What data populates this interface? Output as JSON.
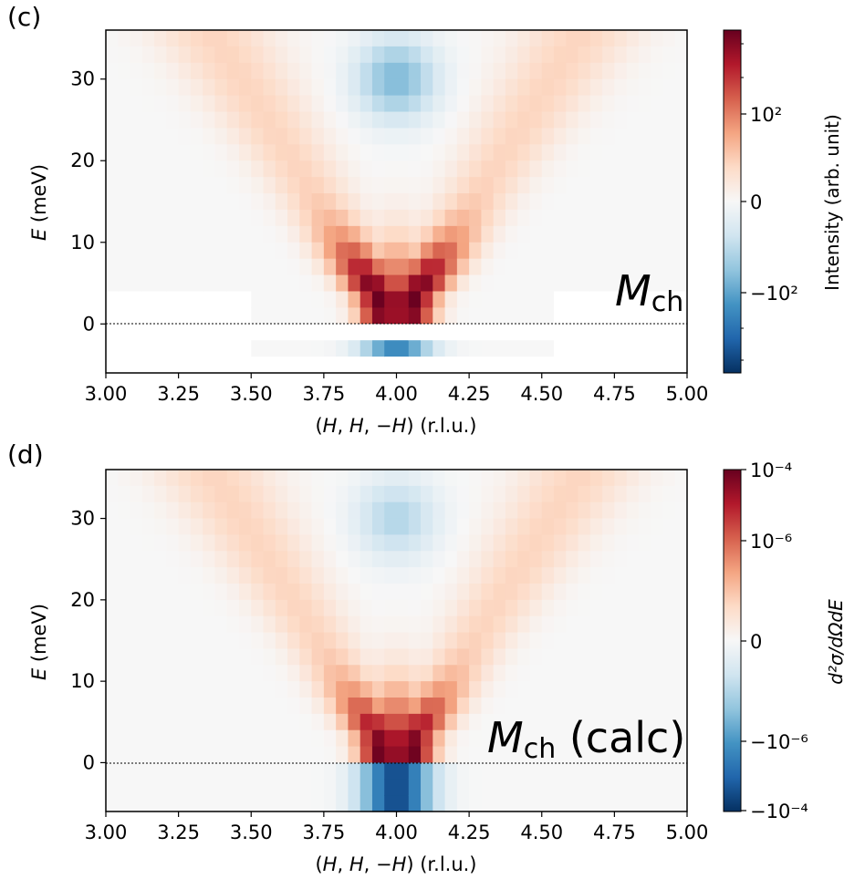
{
  "panels": [
    {
      "label": "(c)",
      "annotation": {
        "symbol": "M",
        "subscript": "ch",
        "suffix": ""
      },
      "xlabel_prefix": "(",
      "xlabel_vars": [
        "H",
        ", ",
        "H",
        ", −",
        "H"
      ],
      "xlabel_suffix": ") (r.l.u.)",
      "ylabel_var": "E",
      "ylabel_unit": " (meV)",
      "colorbar_label": "Intensity (arb. unit)",
      "colorbar_ticks": [
        "10²",
        "0",
        "−10²"
      ]
    },
    {
      "label": "(d)",
      "annotation": {
        "symbol": "M",
        "subscript": "ch",
        "suffix": " (calc)"
      },
      "xlabel_prefix": "(",
      "xlabel_vars": [
        "H",
        ", ",
        "H",
        ", −",
        "H"
      ],
      "xlabel_suffix": ") (r.l.u.)",
      "ylabel_var": "E",
      "ylabel_unit": " (meV)",
      "colorbar_label": "d²σ/dΩdE",
      "colorbar_ticks": [
        "10⁻⁴",
        "10⁻⁶",
        "0",
        "−10⁻⁶",
        "−10⁻⁴"
      ]
    }
  ],
  "chart_data": [
    {
      "type": "heatmap",
      "title": "(c)",
      "xlabel": "(H, H, −H) (r.l.u.)",
      "ylabel": "E (meV)",
      "xlim": [
        3.0,
        5.0
      ],
      "ylim": [
        -6,
        36
      ],
      "xticks": [
        "3.00",
        "3.25",
        "3.50",
        "3.75",
        "4.00",
        "4.25",
        "4.50",
        "4.75",
        "5.00"
      ],
      "yticks": [
        "0",
        "10",
        "20",
        "30"
      ],
      "reference_line_y": 0,
      "colorbar": {
        "label": "Intensity (arb. unit)",
        "scale": "symlog",
        "ticks": [
          "10²",
          "0",
          "−10²"
        ],
        "cmap": "RdBu_r"
      },
      "no_data_band_E": [
        -2,
        4
      ],
      "branch_center_H": 4.0,
      "branch_dispersion_rlu_per_meV": 0.0178,
      "branch_peak_E": 3,
      "branch_peak_value": 1.0,
      "negative_feature": {
        "center_H": 4.0,
        "center_E": 30,
        "half_width_H": 0.14,
        "min_value": -0.45
      },
      "negative_below_gap_value": -0.65
    },
    {
      "type": "heatmap",
      "title": "(d)",
      "xlabel": "(H, H, −H) (r.l.u.)",
      "ylabel": "E (meV)",
      "xlim": [
        3.0,
        5.0
      ],
      "ylim": [
        -6,
        36
      ],
      "xticks": [
        "3.00",
        "3.25",
        "3.50",
        "3.75",
        "4.00",
        "4.25",
        "4.50",
        "4.75",
        "5.00"
      ],
      "yticks": [
        "0",
        "10",
        "20",
        "30"
      ],
      "reference_line_y": 0,
      "colorbar": {
        "label": "d²σ/dΩdE",
        "scale": "symlog",
        "ticks": [
          "10⁻⁴",
          "10⁻⁶",
          "0",
          "−10⁻⁶",
          "−10⁻⁴"
        ],
        "cmap": "RdBu_r"
      },
      "branch_center_H": 4.0,
      "branch_dispersion_rlu_per_meV": 0.0178,
      "branch_peak_E": 1,
      "branch_peak_value": 1.0,
      "negative_feature": {
        "center_H": 4.0,
        "center_E": 30,
        "half_width_H": 0.14,
        "min_value": -0.3
      },
      "negative_below_zero_value": -0.9
    }
  ],
  "colors": {
    "cmap_RdBu_r": [
      "#053061",
      "#2166ac",
      "#4393c3",
      "#92c5de",
      "#d1e5f0",
      "#f7f7f7",
      "#fddbc7",
      "#f4a582",
      "#d6604d",
      "#b2182b",
      "#67001f"
    ]
  }
}
